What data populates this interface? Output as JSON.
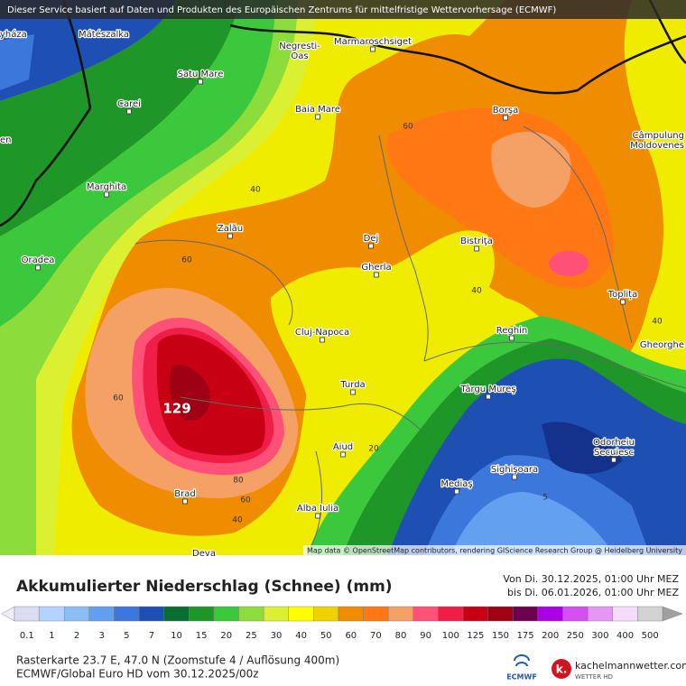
{
  "banner": "Dieser Service basiert auf Daten und Produkten des Europäischen Zentrums für mittelfristige Wettervorhersage (ECMWF)",
  "map": {
    "places": [
      {
        "lines": [
          "yháza"
        ]
      },
      {
        "lines": [
          "Mátészalka"
        ]
      },
      {
        "lines": [
          "Negresti-",
          "Oas"
        ]
      },
      {
        "lines": [
          "Marmaroschsiget"
        ]
      },
      {
        "lines": [
          "Satu Mare"
        ]
      },
      {
        "lines": [
          "Carei"
        ]
      },
      {
        "lines": [
          "Baia Mare"
        ]
      },
      {
        "lines": [
          "Borşa"
        ]
      },
      {
        "lines": [
          "Câmpulung",
          "Moldovenes"
        ]
      },
      {
        "lines": [
          "en"
        ]
      },
      {
        "lines": [
          "Marghita"
        ]
      },
      {
        "lines": [
          "Zalău"
        ]
      },
      {
        "lines": [
          "Dej"
        ]
      },
      {
        "lines": [
          "Bistriţa"
        ]
      },
      {
        "lines": [
          "Oradea"
        ]
      },
      {
        "lines": [
          "Gherla"
        ]
      },
      {
        "lines": [
          "Toplița"
        ]
      },
      {
        "lines": [
          "Cluj-Napoca"
        ]
      },
      {
        "lines": [
          "Reghin"
        ]
      },
      {
        "lines": [
          "Gheorghe"
        ]
      },
      {
        "lines": [
          "Turda"
        ]
      },
      {
        "lines": [
          "Târgu Mureş"
        ]
      },
      {
        "lines": [
          "Aiud"
        ]
      },
      {
        "lines": [
          "Odorheiu",
          "Secuiesc"
        ]
      },
      {
        "lines": [
          "Sighişoara"
        ]
      },
      {
        "lines": [
          "Mediaş"
        ]
      },
      {
        "lines": [
          "Brad"
        ]
      },
      {
        "lines": [
          "Alba Iulia"
        ]
      },
      {
        "lines": [
          "Deva"
        ]
      }
    ],
    "contour_labels": [
      60,
      40,
      60,
      40,
      40,
      60,
      80,
      60,
      40,
      20,
      5
    ],
    "max_label": "129",
    "attribution": "Map data © OpenStreetMap contributors, rendering GIScience Research Group @ Heidelberg University"
  },
  "legend": {
    "title": "Akkumulierter Niederschlag (Schnee) (mm)",
    "period_from": "Von Di. 30.12.2025, 01:00 Uhr MEZ",
    "period_to": "bis Di. 06.01.2026, 01:00 Uhr MEZ",
    "scale": [
      {
        "value": 0.1,
        "color": "#dcdcf0"
      },
      {
        "value": 1,
        "color": "#b4d2ff"
      },
      {
        "value": 2,
        "color": "#8cbef5"
      },
      {
        "value": 3,
        "color": "#64a0f0"
      },
      {
        "value": 5,
        "color": "#3c78dc"
      },
      {
        "value": 7,
        "color": "#1e50b4"
      },
      {
        "value": 10,
        "color": "#0a6e32"
      },
      {
        "value": 15,
        "color": "#1e9628"
      },
      {
        "value": 20,
        "color": "#3cc83c"
      },
      {
        "value": 25,
        "color": "#8cdc3c"
      },
      {
        "value": 30,
        "color": "#dcf032"
      },
      {
        "value": 40,
        "color": "#ffff00"
      },
      {
        "value": 50,
        "color": "#f0d200"
      },
      {
        "value": 60,
        "color": "#f08c00"
      },
      {
        "value": 70,
        "color": "#ff7814"
      },
      {
        "value": 80,
        "color": "#f5a064"
      },
      {
        "value": 90,
        "color": "#ff5078"
      },
      {
        "value": 100,
        "color": "#f01e46"
      },
      {
        "value": 125,
        "color": "#c80014"
      },
      {
        "value": 150,
        "color": "#a00014"
      },
      {
        "value": 175,
        "color": "#6e0050"
      },
      {
        "value": 200,
        "color": "#aa00e6"
      },
      {
        "value": 250,
        "color": "#d250f0"
      },
      {
        "value": 300,
        "color": "#e696f5"
      },
      {
        "value": 400,
        "color": "#f5dcfa"
      },
      {
        "value": 500,
        "color": "#d2d2d2"
      }
    ]
  },
  "footer": {
    "line1": "Rasterkarte 23.7 E, 47.0 N (Zoomstufe 4 / Auflösung 400m)",
    "line2": "ECMWF/Global Euro HD vom 30.12.2025/00z"
  },
  "logos": {
    "ecmwf": "ECMWF",
    "kachelmann": "kachelmannwetter.com",
    "kachelmann_sub": "WETTER HD"
  }
}
